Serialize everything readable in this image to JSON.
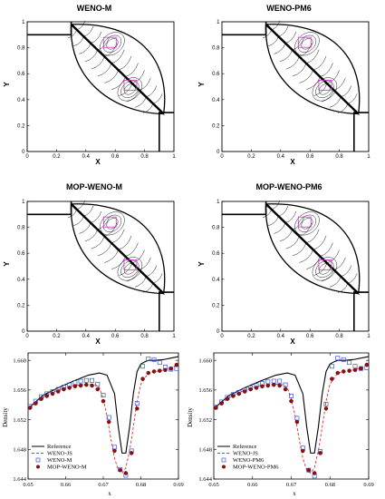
{
  "contour_panels": [
    {
      "title": "WENO-M",
      "xlabel": "X",
      "ylabel": "Y"
    },
    {
      "title": "WENO-PM6",
      "xlabel": "X",
      "ylabel": "Y"
    },
    {
      "title": "MOP-WENO-M",
      "xlabel": "X",
      "ylabel": "Y"
    },
    {
      "title": "MOP-WENO-PM6",
      "xlabel": "X",
      "ylabel": "Y"
    }
  ],
  "contour_ticks": {
    "x": [
      "0",
      "0.2",
      "0.4",
      "0.6",
      "0.8",
      "1"
    ],
    "y": [
      "0",
      "0.2",
      "0.4",
      "0.6",
      "0.8",
      "1"
    ]
  },
  "chart_data": [
    {
      "type": "line",
      "xlabel": "x",
      "ylabel": "Density",
      "xlim": [
        0.65,
        0.69
      ],
      "ylim": [
        1.644,
        1.661
      ],
      "xticks": [
        "0.65",
        "0.66",
        "0.67",
        "0.68",
        "0.69"
      ],
      "yticks": [
        "1.644",
        "1.648",
        "1.652",
        "1.656",
        "1.660"
      ],
      "legend_position": "bottom-left",
      "series": [
        {
          "name": "Reference",
          "style": "solid-black",
          "x": [
            0.65,
            0.654,
            0.658,
            0.662,
            0.666,
            0.669,
            0.671,
            0.673,
            0.674,
            0.675,
            0.676,
            0.677,
            0.678,
            0.679,
            0.68,
            0.681,
            0.682,
            0.684,
            0.686,
            0.688,
            0.69
          ],
          "y": [
            1.6535,
            1.6553,
            1.6563,
            1.6572,
            1.658,
            1.6583,
            1.658,
            1.6555,
            1.651,
            1.6475,
            1.6475,
            1.651,
            1.6555,
            1.6585,
            1.6595,
            1.6598,
            1.66,
            1.66,
            1.6601,
            1.6603,
            1.6605
          ]
        },
        {
          "name": "WENO-JS",
          "style": "dashed-red",
          "x": [
            0.65,
            0.654,
            0.658,
            0.662,
            0.666,
            0.668,
            0.669,
            0.67,
            0.671,
            0.672,
            0.673,
            0.674,
            0.675,
            0.676,
            0.677,
            0.678,
            0.679,
            0.68,
            0.682,
            0.684,
            0.686,
            0.688,
            0.69
          ],
          "y": [
            1.6535,
            1.655,
            1.656,
            1.6566,
            1.6568,
            1.6567,
            1.6563,
            1.6548,
            1.6525,
            1.6495,
            1.6468,
            1.6452,
            1.6448,
            1.6455,
            1.6478,
            1.651,
            1.6545,
            1.6568,
            1.6583,
            1.6585,
            1.6587,
            1.659,
            1.6595
          ]
        },
        {
          "name": "WENO-M",
          "style": "square-blue",
          "x": [
            0.6505,
            0.652,
            0.6535,
            0.655,
            0.6565,
            0.658,
            0.6595,
            0.661,
            0.6625,
            0.664,
            0.6655,
            0.667,
            0.6685,
            0.67,
            0.6715,
            0.673,
            0.6745,
            0.676,
            0.6775,
            0.679,
            0.6805,
            0.682,
            0.6835,
            0.685,
            0.6865,
            0.688,
            0.6895
          ],
          "y": [
            1.6538,
            1.6545,
            1.6551,
            1.6555,
            1.6558,
            1.6561,
            1.6564,
            1.6567,
            1.657,
            1.6572,
            1.6573,
            1.6573,
            1.6568,
            1.6553,
            1.6523,
            1.6483,
            1.6453,
            1.6445,
            1.6478,
            1.6542,
            1.6592,
            1.6602,
            1.6601,
            1.6597,
            1.6591,
            1.6588,
            1.6589
          ]
        },
        {
          "name": "MOP-WENO-M",
          "style": "circle-darkred",
          "x": [
            0.6505,
            0.652,
            0.6535,
            0.655,
            0.6565,
            0.658,
            0.6595,
            0.661,
            0.6625,
            0.664,
            0.6655,
            0.667,
            0.6685,
            0.67,
            0.6715,
            0.673,
            0.6745,
            0.676,
            0.6775,
            0.679,
            0.6805,
            0.682,
            0.6835,
            0.685,
            0.6865,
            0.688,
            0.6895
          ],
          "y": [
            1.6536,
            1.6542,
            1.6548,
            1.6552,
            1.6555,
            1.6558,
            1.6561,
            1.6563,
            1.6565,
            1.6566,
            1.6567,
            1.6566,
            1.6561,
            1.6545,
            1.6517,
            1.6478,
            1.6452,
            1.6448,
            1.6475,
            1.6535,
            1.6575,
            1.6583,
            1.6585,
            1.6586,
            1.6587,
            1.6589,
            1.6594
          ]
        }
      ]
    },
    {
      "type": "line",
      "xlabel": "x",
      "ylabel": "Density",
      "xlim": [
        0.65,
        0.69
      ],
      "ylim": [
        1.644,
        1.661
      ],
      "xticks": [
        "0.65",
        "0.66",
        "0.67",
        "0.68",
        "0.69"
      ],
      "yticks": [
        "1.644",
        "1.648",
        "1.652",
        "1.656",
        "1.660"
      ],
      "legend_position": "bottom-left",
      "series": [
        {
          "name": "Reference",
          "style": "solid-black",
          "x": [
            0.65,
            0.654,
            0.658,
            0.662,
            0.666,
            0.669,
            0.671,
            0.673,
            0.674,
            0.675,
            0.676,
            0.677,
            0.678,
            0.679,
            0.68,
            0.681,
            0.682,
            0.684,
            0.686,
            0.688,
            0.69
          ],
          "y": [
            1.6535,
            1.6553,
            1.6563,
            1.6572,
            1.658,
            1.6583,
            1.658,
            1.6555,
            1.651,
            1.6475,
            1.6475,
            1.651,
            1.6555,
            1.6585,
            1.6595,
            1.6598,
            1.66,
            1.66,
            1.6601,
            1.6603,
            1.6605
          ]
        },
        {
          "name": "WENO-JS",
          "style": "dashed-red",
          "x": [
            0.65,
            0.654,
            0.658,
            0.662,
            0.666,
            0.668,
            0.669,
            0.67,
            0.671,
            0.672,
            0.673,
            0.674,
            0.675,
            0.676,
            0.677,
            0.678,
            0.679,
            0.68,
            0.682,
            0.684,
            0.686,
            0.688,
            0.69
          ],
          "y": [
            1.6535,
            1.655,
            1.656,
            1.6566,
            1.6568,
            1.6567,
            1.6563,
            1.6548,
            1.6525,
            1.6495,
            1.6468,
            1.6452,
            1.6448,
            1.6455,
            1.6478,
            1.651,
            1.6545,
            1.6568,
            1.6583,
            1.6585,
            1.6587,
            1.659,
            1.6595
          ]
        },
        {
          "name": "WENO-PM6",
          "style": "square-blue",
          "x": [
            0.6505,
            0.652,
            0.6535,
            0.655,
            0.6565,
            0.658,
            0.6595,
            0.661,
            0.6625,
            0.664,
            0.6655,
            0.667,
            0.6685,
            0.67,
            0.6715,
            0.673,
            0.6745,
            0.676,
            0.6775,
            0.679,
            0.6805,
            0.682,
            0.6835,
            0.685,
            0.6865,
            0.688,
            0.6895
          ],
          "y": [
            1.6537,
            1.6544,
            1.655,
            1.6554,
            1.6557,
            1.656,
            1.6563,
            1.6566,
            1.6569,
            1.6571,
            1.6572,
            1.6572,
            1.6567,
            1.6552,
            1.6522,
            1.6482,
            1.6452,
            1.6444,
            1.6477,
            1.6541,
            1.6592,
            1.6603,
            1.6601,
            1.6597,
            1.6592,
            1.6589,
            1.659
          ]
        },
        {
          "name": "MOP-WENO-PM6",
          "style": "circle-darkred",
          "x": [
            0.6505,
            0.652,
            0.6535,
            0.655,
            0.6565,
            0.658,
            0.6595,
            0.661,
            0.6625,
            0.664,
            0.6655,
            0.667,
            0.6685,
            0.67,
            0.6715,
            0.673,
            0.6745,
            0.676,
            0.6775,
            0.679,
            0.6805,
            0.682,
            0.6835,
            0.685,
            0.6865,
            0.688,
            0.6895
          ],
          "y": [
            1.6536,
            1.6542,
            1.6548,
            1.6552,
            1.6555,
            1.6558,
            1.6561,
            1.6563,
            1.6565,
            1.6566,
            1.6567,
            1.6566,
            1.6561,
            1.6545,
            1.6517,
            1.6478,
            1.6452,
            1.6448,
            1.6475,
            1.6535,
            1.6575,
            1.6583,
            1.6585,
            1.6586,
            1.6587,
            1.6589,
            1.6594
          ]
        }
      ]
    }
  ]
}
